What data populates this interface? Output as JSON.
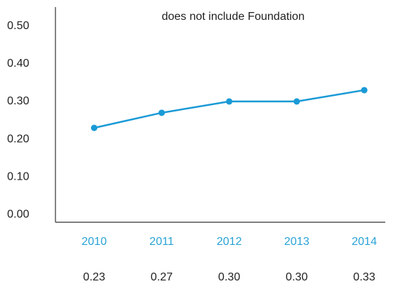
{
  "chart_data": {
    "type": "line",
    "title": "does not include Foundation",
    "categories": [
      "2010",
      "2011",
      "2012",
      "2013",
      "2014"
    ],
    "values": [
      0.23,
      0.27,
      0.3,
      0.3,
      0.33
    ],
    "value_labels": [
      "0.23",
      "0.27",
      "0.30",
      "0.30",
      "0.33"
    ],
    "color": "#1a9ad6",
    "ylim": [
      -0.02,
      0.55
    ],
    "yticks": [
      {
        "value": 0,
        "label": "0.00"
      },
      {
        "value": 0.1,
        "label": "0.10"
      },
      {
        "value": 0.2,
        "label": "0.20"
      },
      {
        "value": 0.3,
        "label": "0.30"
      },
      {
        "value": 0.4,
        "label": "0.40"
      },
      {
        "value": 0.5,
        "label": "0.50"
      }
    ],
    "grid": false
  }
}
